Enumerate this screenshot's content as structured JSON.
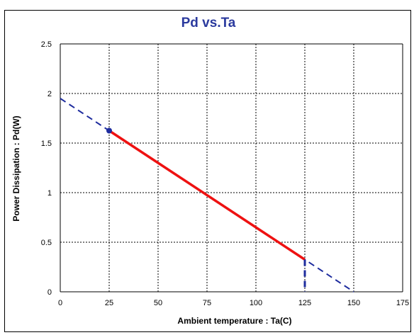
{
  "chart_data": {
    "type": "line",
    "title": "Pd vs.Ta",
    "xlabel": "Ambient temperature : Ta(C)",
    "ylabel": "Power Dissipation : Pd(W)",
    "xlim": [
      0,
      175
    ],
    "ylim": [
      0,
      2.5
    ],
    "x_ticks": [
      0,
      25,
      50,
      75,
      100,
      125,
      150,
      175
    ],
    "y_ticks": [
      0,
      0.5,
      1,
      1.5,
      2,
      2.5
    ],
    "x_tick_labels": [
      "0",
      "25",
      "50",
      "75",
      "100",
      "125",
      "150",
      "175"
    ],
    "y_tick_labels": [
      "0",
      "0.5",
      "1",
      "1.5",
      "2",
      "2.5"
    ],
    "grid": true,
    "series": [
      {
        "role": "derating-dashed",
        "style": "dashed",
        "color": "#1e2c9e",
        "x": [
          0,
          150
        ],
        "y": [
          1.95,
          0
        ]
      },
      {
        "role": "operating-range",
        "style": "solid",
        "color": "#ee1111",
        "x": [
          25,
          125
        ],
        "y": [
          1.625,
          0.325
        ]
      },
      {
        "role": "max-temperature-drop",
        "style": "dashed",
        "color": "#1e2c9e",
        "x": [
          125,
          125
        ],
        "y": [
          0.325,
          0
        ]
      }
    ],
    "points": [
      {
        "x": 25,
        "y": 1.625,
        "color": "#1e2c9e"
      }
    ]
  }
}
